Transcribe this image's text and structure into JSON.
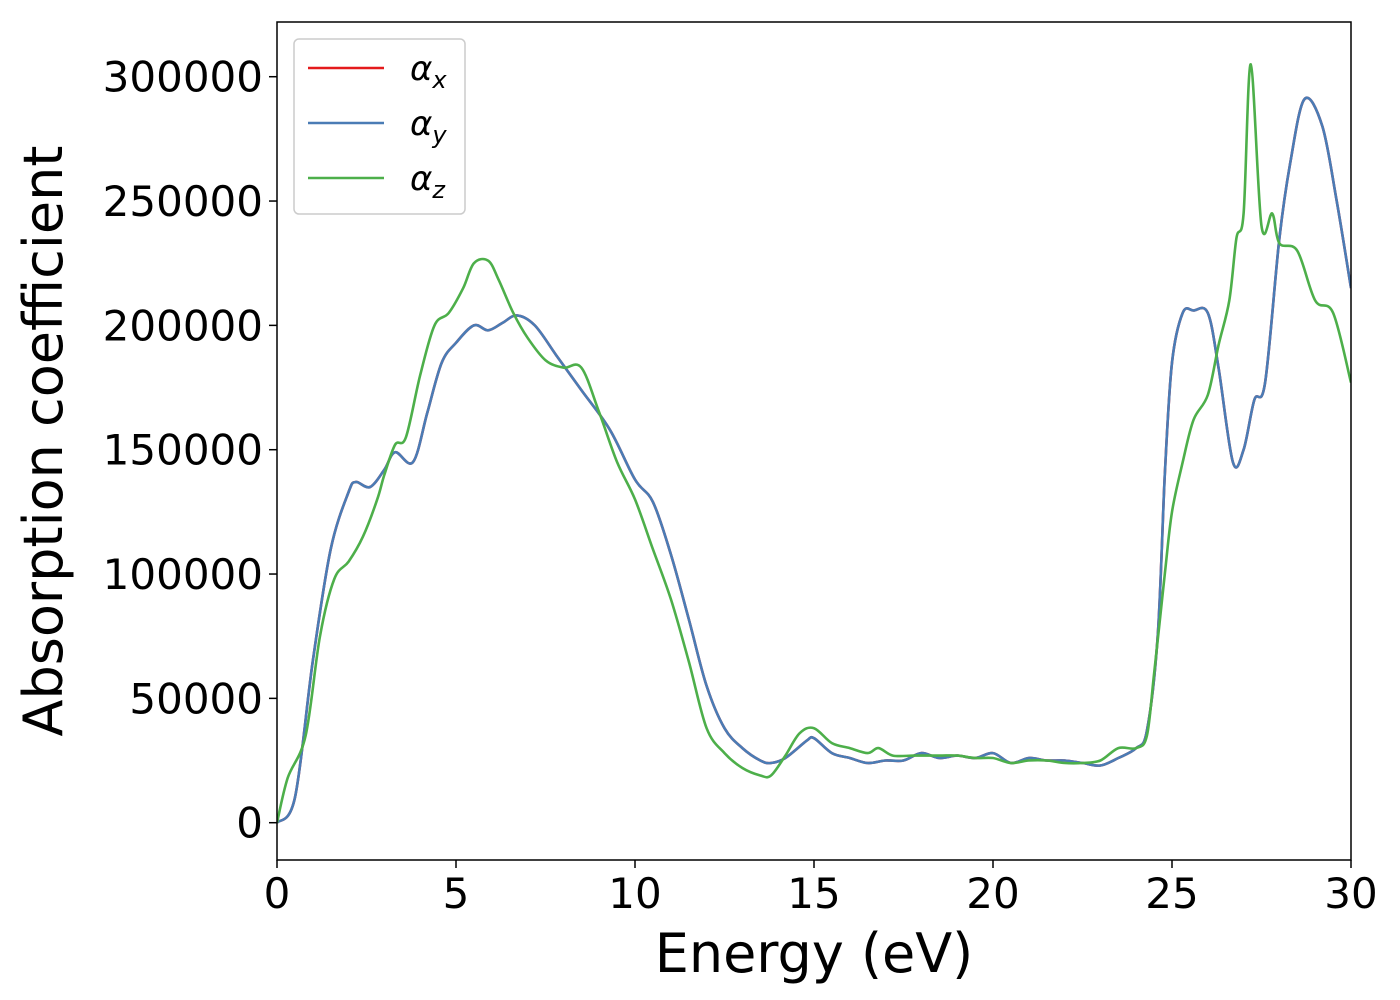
{
  "chart_data": {
    "type": "line",
    "xlabel": "Energy (eV)",
    "ylabel": "Absorption coefficient",
    "xlim": [
      0,
      30
    ],
    "ylim": [
      -15000,
      322000
    ],
    "xticks": [
      0,
      5,
      10,
      15,
      20,
      25,
      30
    ],
    "yticks": [
      0,
      50000,
      100000,
      150000,
      200000,
      250000,
      300000
    ],
    "xtick_labels": [
      "0",
      "5",
      "10",
      "15",
      "20",
      "25",
      "30"
    ],
    "ytick_labels": [
      "0",
      "50000",
      "100000",
      "150000",
      "200000",
      "250000",
      "300000"
    ],
    "grid": false,
    "legend_position": "top-left",
    "series": [
      {
        "name": "α",
        "subscript": "x",
        "color": "#e41a1c",
        "x": [
          0,
          0.5,
          1,
          1.5,
          2,
          2.2,
          2.6,
          3,
          3.3,
          3.8,
          4.2,
          4.6,
          5,
          5.5,
          5.9,
          6.3,
          6.7,
          7.2,
          7.8,
          8.5,
          9.3,
          10,
          10.5,
          11,
          11.5,
          12,
          12.5,
          13,
          13.5,
          13.8,
          14.2,
          14.8,
          15,
          15.5,
          16,
          16.5,
          17,
          17.5,
          18,
          18.5,
          19,
          19.5,
          20,
          20.5,
          21,
          21.5,
          22,
          22.5,
          23,
          23.5,
          24,
          24.3,
          24.6,
          24.8,
          25,
          25.3,
          25.6,
          26,
          26.3,
          26.7,
          27,
          27.3,
          27.6,
          28,
          28.3,
          28.7,
          29.2,
          29.6,
          30
        ],
        "values": [
          0,
          10000,
          65000,
          110000,
          133000,
          137000,
          135000,
          142000,
          149000,
          145000,
          165000,
          185000,
          193000,
          200000,
          198000,
          201000,
          204000,
          200000,
          188000,
          174000,
          158000,
          138000,
          129000,
          108000,
          82000,
          55000,
          38000,
          30000,
          25000,
          24000,
          26000,
          33000,
          34000,
          28000,
          26000,
          24000,
          25000,
          25000,
          28000,
          26000,
          27000,
          26000,
          28000,
          24000,
          26000,
          25000,
          25000,
          24000,
          23000,
          26000,
          30000,
          37000,
          75000,
          140000,
          185000,
          205000,
          206000,
          205000,
          183000,
          145000,
          150000,
          170000,
          177000,
          235000,
          265000,
          291000,
          280000,
          250000,
          215000
        ]
      },
      {
        "name": "α",
        "subscript": "y",
        "color": "#4a7cb5",
        "x": [
          0,
          0.5,
          1,
          1.5,
          2,
          2.2,
          2.6,
          3,
          3.3,
          3.8,
          4.2,
          4.6,
          5,
          5.5,
          5.9,
          6.3,
          6.7,
          7.2,
          7.8,
          8.5,
          9.3,
          10,
          10.5,
          11,
          11.5,
          12,
          12.5,
          13,
          13.5,
          13.8,
          14.2,
          14.8,
          15,
          15.5,
          16,
          16.5,
          17,
          17.5,
          18,
          18.5,
          19,
          19.5,
          20,
          20.5,
          21,
          21.5,
          22,
          22.5,
          23,
          23.5,
          24,
          24.3,
          24.6,
          24.8,
          25,
          25.3,
          25.6,
          26,
          26.3,
          26.7,
          27,
          27.3,
          27.6,
          28,
          28.3,
          28.7,
          29.2,
          29.6,
          30
        ],
        "values": [
          0,
          10000,
          65000,
          110000,
          133000,
          137000,
          135000,
          142000,
          149000,
          145000,
          165000,
          185000,
          193000,
          200000,
          198000,
          201000,
          204000,
          200000,
          188000,
          174000,
          158000,
          138000,
          129000,
          108000,
          82000,
          55000,
          38000,
          30000,
          25000,
          24000,
          26000,
          33000,
          34000,
          28000,
          26000,
          24000,
          25000,
          25000,
          28000,
          26000,
          27000,
          26000,
          28000,
          24000,
          26000,
          25000,
          25000,
          24000,
          23000,
          26000,
          30000,
          37000,
          75000,
          140000,
          185000,
          205000,
          206000,
          205000,
          183000,
          145000,
          150000,
          170000,
          177000,
          235000,
          265000,
          291000,
          280000,
          250000,
          215000
        ]
      },
      {
        "name": "α",
        "subscript": "z",
        "color": "#4daf4a",
        "x": [
          0,
          0.3,
          0.8,
          1.2,
          1.6,
          2,
          2.4,
          2.8,
          3,
          3.3,
          3.6,
          4,
          4.4,
          4.8,
          5.2,
          5.5,
          5.9,
          6.2,
          6.6,
          7,
          7.5,
          8,
          8.5,
          9,
          9.5,
          10,
          10.5,
          11,
          11.5,
          12,
          12.5,
          13,
          13.5,
          13.8,
          14.2,
          14.6,
          15,
          15.5,
          16,
          16.5,
          16.8,
          17.2,
          17.8,
          18.5,
          19,
          19.5,
          20,
          20.5,
          21,
          21.5,
          22,
          22.5,
          23,
          23.5,
          24,
          24.3,
          24.5,
          24.8,
          25,
          25.3,
          25.6,
          26,
          26.3,
          26.6,
          26.8,
          27,
          27.2,
          27.5,
          27.8,
          28,
          28.5,
          29,
          29.5,
          30
        ],
        "values": [
          0,
          18000,
          35000,
          75000,
          98000,
          105000,
          115000,
          130000,
          140000,
          152000,
          155000,
          180000,
          200000,
          205000,
          215000,
          225000,
          226000,
          218000,
          205000,
          195000,
          186000,
          183000,
          183000,
          165000,
          145000,
          130000,
          110000,
          90000,
          65000,
          38000,
          28000,
          22000,
          19000,
          19000,
          27000,
          36000,
          38000,
          32000,
          30000,
          28000,
          30000,
          27000,
          27000,
          27000,
          27000,
          26000,
          26000,
          24000,
          25000,
          25000,
          24000,
          24000,
          25000,
          30000,
          30000,
          35000,
          60000,
          100000,
          125000,
          145000,
          162000,
          172000,
          192000,
          210000,
          235000,
          245000,
          305000,
          240000,
          245000,
          233000,
          230000,
          210000,
          205000,
          177000
        ]
      }
    ]
  }
}
